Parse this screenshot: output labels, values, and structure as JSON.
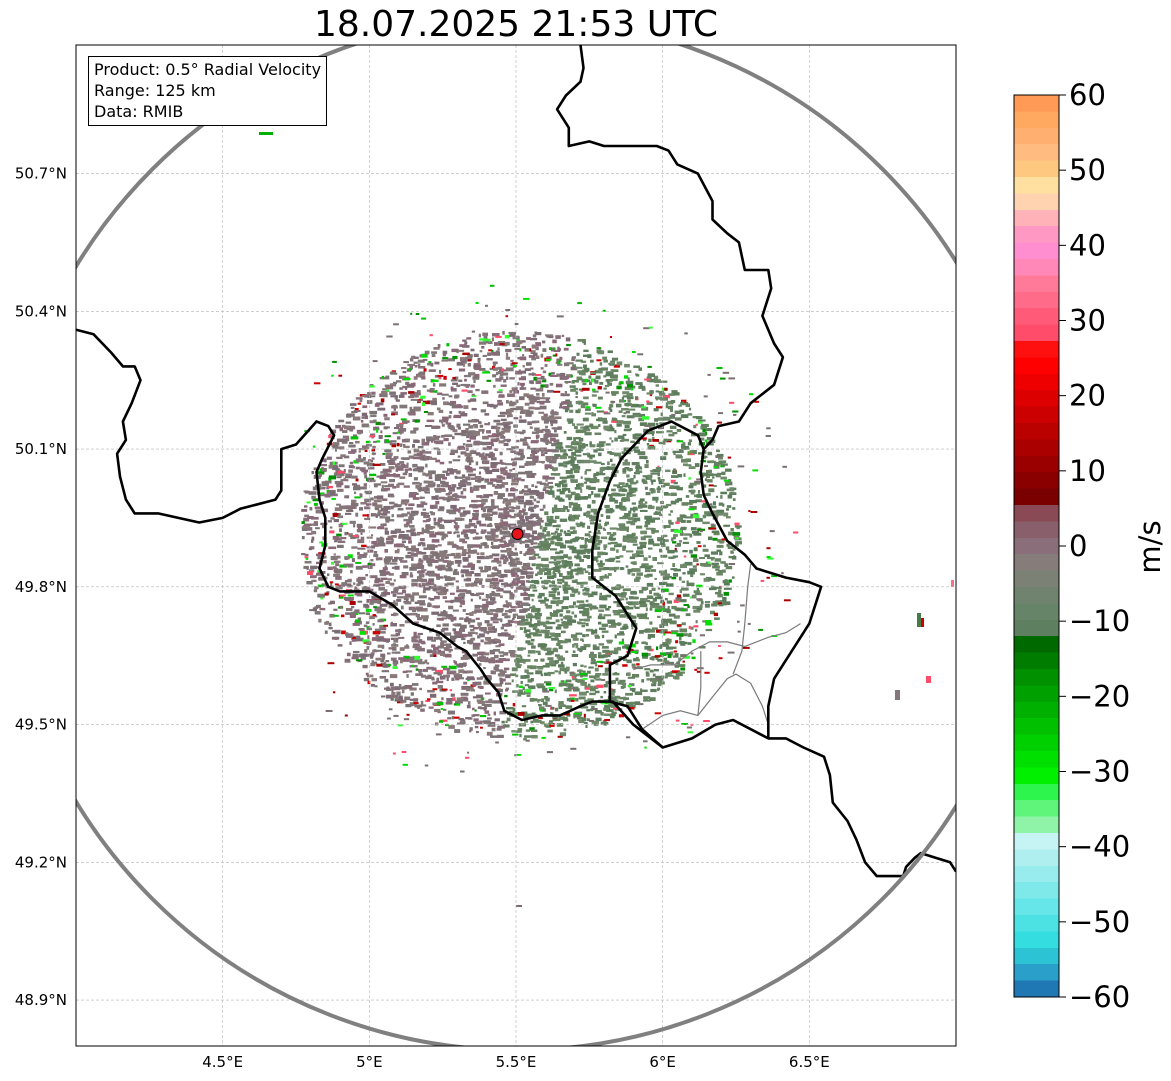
{
  "title": "18.07.2025 21:53 UTC",
  "info_box": {
    "product": "Product: 0.5° Radial Velocity",
    "range": "Range: 125 km",
    "data": "Data: RMIB"
  },
  "axes": {
    "lon_range": [
      4.0,
      7.0
    ],
    "lat_range": [
      48.8,
      50.98
    ],
    "lon_ticks": [
      4.5,
      5.0,
      5.5,
      6.0,
      6.5
    ],
    "lon_tick_labels": [
      "4.5°E",
      "5°E",
      "5.5°E",
      "6°E",
      "6.5°E"
    ],
    "lat_ticks": [
      48.9,
      49.2,
      49.5,
      49.8,
      50.1,
      50.4,
      50.7
    ],
    "lat_tick_labels": [
      "48.9°N",
      "49.2°N",
      "49.5°N",
      "49.8°N",
      "50.1°N",
      "50.4°N",
      "50.7°N"
    ],
    "grid": true
  },
  "radar": {
    "site": {
      "lon": 5.505,
      "lat": 49.915
    },
    "range_km": 125,
    "marker_color": "#e8141b",
    "ring_color": "#808080"
  },
  "colorbar": {
    "label": "m/s",
    "min": -60,
    "max": 60,
    "ticks": [
      60,
      50,
      40,
      30,
      20,
      10,
      0,
      -10,
      -20,
      -30,
      -40,
      -50,
      -60
    ],
    "tick_labels": [
      "60",
      "50",
      "40",
      "30",
      "20",
      "10",
      "0",
      "−10",
      "−20",
      "−30",
      "−40",
      "−50",
      "−60"
    ],
    "colors": [
      "#1f77b4",
      "#2a9fc9",
      "#2cc3d4",
      "#33dde0",
      "#4ce2e4",
      "#66e6e8",
      "#7fe9ea",
      "#99ecee",
      "#b0eff0",
      "#c6f3f4",
      "#90f4a8",
      "#5ef57a",
      "#2ef54e",
      "#00f000",
      "#00e000",
      "#00d000",
      "#00c000",
      "#00b000",
      "#00a000",
      "#009000",
      "#007d00",
      "#006a00",
      "#5e8060",
      "#668467",
      "#70836e",
      "#7b8275",
      "#867c7a",
      "#8a6f7a",
      "#8a5f6c",
      "#8a4a55",
      "#7a0000",
      "#8a0000",
      "#9a0000",
      "#aa0000",
      "#bb0000",
      "#cc0000",
      "#dd0000",
      "#ee0000",
      "#ff0000",
      "#ff1010",
      "#ff4c6a",
      "#ff5b78",
      "#ff6b88",
      "#ff7a98",
      "#ff88b8",
      "#ff8ed0",
      "#ff99c4",
      "#ffb3b8",
      "#ffd2b0",
      "#ffe0a0",
      "#ffc880",
      "#ffbb80",
      "#ffb070",
      "#ffa860",
      "#ff9955"
    ]
  },
  "borders": {
    "country": [
      [
        [
          4.0,
          50.36
        ],
        [
          4.06,
          50.35
        ],
        [
          4.12,
          50.31
        ],
        [
          4.16,
          50.28
        ],
        [
          4.2,
          50.28
        ],
        [
          4.22,
          50.25
        ],
        [
          4.19,
          50.2
        ],
        [
          4.16,
          50.16
        ],
        [
          4.17,
          50.12
        ],
        [
          4.14,
          50.09
        ],
        [
          4.15,
          50.04
        ],
        [
          4.17,
          49.99
        ],
        [
          4.2,
          49.96
        ],
        [
          4.28,
          49.96
        ],
        [
          4.42,
          49.94
        ],
        [
          4.5,
          49.95
        ],
        [
          4.56,
          49.97
        ],
        [
          4.68,
          49.99
        ],
        [
          4.7,
          50.01
        ],
        [
          4.7,
          50.1
        ],
        [
          4.75,
          50.11
        ],
        [
          4.82,
          50.16
        ],
        [
          4.86,
          50.15
        ],
        [
          4.88,
          50.13
        ],
        [
          4.84,
          50.08
        ],
        [
          4.82,
          50.05
        ],
        [
          4.83,
          49.99
        ],
        [
          4.85,
          49.95
        ],
        [
          4.85,
          49.89
        ],
        [
          4.83,
          49.84
        ],
        [
          4.86,
          49.8
        ],
        [
          4.9,
          49.79
        ],
        [
          4.98,
          49.79
        ],
        [
          5.0,
          49.79
        ],
        [
          5.08,
          49.76
        ],
        [
          5.15,
          49.72
        ],
        [
          5.24,
          49.7
        ],
        [
          5.3,
          49.67
        ],
        [
          5.33,
          49.66
        ],
        [
          5.38,
          49.62
        ],
        [
          5.4,
          49.6
        ],
        [
          5.44,
          49.57
        ],
        [
          5.46,
          49.53
        ],
        [
          5.52,
          49.51
        ],
        [
          5.59,
          49.52
        ],
        [
          5.65,
          49.52
        ],
        [
          5.72,
          49.54
        ],
        [
          5.76,
          49.55
        ],
        [
          5.83,
          49.55
        ],
        [
          5.9,
          49.5
        ],
        [
          6.0,
          49.45
        ],
        [
          6.1,
          49.47
        ],
        [
          6.18,
          49.5
        ],
        [
          6.24,
          49.51
        ],
        [
          6.3,
          49.49
        ],
        [
          6.36,
          49.47
        ],
        [
          6.42,
          49.47
        ],
        [
          6.48,
          49.45
        ],
        [
          6.55,
          49.43
        ],
        [
          6.57,
          49.39
        ],
        [
          6.58,
          49.33
        ],
        [
          6.63,
          49.29
        ],
        [
          6.66,
          49.25
        ],
        [
          6.69,
          49.2
        ],
        [
          6.73,
          49.17
        ],
        [
          6.76,
          49.17
        ],
        [
          6.82,
          49.17
        ],
        [
          6.83,
          49.19
        ],
        [
          6.86,
          49.21
        ],
        [
          6.88,
          49.22
        ],
        [
          6.93,
          49.21
        ],
        [
          6.98,
          49.2
        ],
        [
          7.0,
          49.18
        ]
      ],
      [
        [
          5.72,
          50.98
        ],
        [
          5.73,
          50.93
        ],
        [
          5.72,
          50.9
        ],
        [
          5.67,
          50.87
        ],
        [
          5.64,
          50.84
        ],
        [
          5.68,
          50.8
        ],
        [
          5.68,
          50.76
        ],
        [
          5.75,
          50.77
        ],
        [
          5.8,
          50.76
        ],
        [
          5.84,
          50.76
        ],
        [
          5.88,
          50.76
        ],
        [
          5.92,
          50.76
        ],
        [
          5.98,
          50.76
        ],
        [
          6.02,
          50.75
        ],
        [
          6.05,
          50.72
        ],
        [
          6.12,
          50.7
        ],
        [
          6.17,
          50.64
        ],
        [
          6.17,
          50.6
        ],
        [
          6.22,
          50.57
        ],
        [
          6.26,
          50.55
        ],
        [
          6.28,
          50.49
        ],
        [
          6.36,
          50.49
        ],
        [
          6.37,
          50.45
        ],
        [
          6.34,
          50.39
        ],
        [
          6.38,
          50.33
        ],
        [
          6.41,
          50.3
        ],
        [
          6.38,
          50.24
        ],
        [
          6.3,
          50.2
        ],
        [
          6.26,
          50.16
        ],
        [
          6.19,
          50.15
        ],
        [
          6.17,
          50.12
        ],
        [
          6.14,
          50.1
        ],
        [
          6.13,
          50.05
        ],
        [
          6.14,
          50.0
        ],
        [
          6.17,
          49.96
        ],
        [
          6.22,
          49.9
        ],
        [
          6.28,
          49.87
        ],
        [
          6.32,
          49.84
        ],
        [
          6.42,
          49.82
        ],
        [
          6.5,
          49.81
        ],
        [
          6.54,
          49.8
        ],
        [
          6.5,
          49.72
        ],
        [
          6.43,
          49.65
        ],
        [
          6.38,
          49.6
        ],
        [
          6.36,
          49.54
        ],
        [
          6.36,
          49.47
        ]
      ],
      [
        [
          6.0,
          49.45
        ],
        [
          5.93,
          49.49
        ],
        [
          5.88,
          49.54
        ],
        [
          5.82,
          49.55
        ],
        [
          5.82,
          49.63
        ],
        [
          5.88,
          49.65
        ],
        [
          5.91,
          49.71
        ],
        [
          5.84,
          49.78
        ],
        [
          5.76,
          49.82
        ],
        [
          5.76,
          49.88
        ],
        [
          5.78,
          49.96
        ],
        [
          5.82,
          50.03
        ],
        [
          5.86,
          50.08
        ],
        [
          5.95,
          50.14
        ],
        [
          6.03,
          50.16
        ],
        [
          6.12,
          50.13
        ],
        [
          6.14,
          50.1
        ]
      ]
    ],
    "regional": [
      [
        [
          5.93,
          49.49
        ],
        [
          6.0,
          49.52
        ],
        [
          6.06,
          49.53
        ],
        [
          6.12,
          49.52
        ],
        [
          6.17,
          49.56
        ],
        [
          6.22,
          49.6
        ],
        [
          6.25,
          49.61
        ],
        [
          6.3,
          49.59
        ],
        [
          6.34,
          49.54
        ],
        [
          6.36,
          49.5
        ]
      ],
      [
        [
          5.9,
          49.62
        ],
        [
          5.96,
          49.63
        ],
        [
          6.04,
          49.63
        ],
        [
          6.1,
          49.66
        ],
        [
          6.16,
          49.68
        ],
        [
          6.22,
          49.68
        ],
        [
          6.28,
          49.67
        ],
        [
          6.32,
          49.68
        ],
        [
          6.36,
          49.69
        ],
        [
          6.42,
          49.7
        ],
        [
          6.47,
          49.72
        ]
      ],
      [
        [
          6.24,
          49.61
        ],
        [
          6.27,
          49.66
        ],
        [
          6.28,
          49.72
        ],
        [
          6.29,
          49.8
        ],
        [
          6.3,
          49.85
        ]
      ],
      [
        [
          6.12,
          49.52
        ],
        [
          6.13,
          49.58
        ],
        [
          6.13,
          49.66
        ]
      ]
    ]
  }
}
